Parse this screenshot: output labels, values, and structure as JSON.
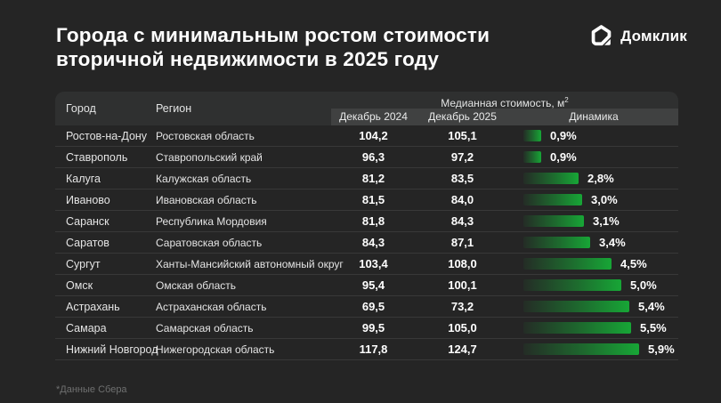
{
  "meta": {
    "background_color": "#252525",
    "header_band_color": "#2f3030",
    "subheader_band_color": "#404141",
    "accent_green": "#17a636",
    "text_color": "#ffffff"
  },
  "header": {
    "title_line1": "Города с минимальным ростом стоимости",
    "title_line2": "вторичной недвижимости в 2025 году",
    "logo_text": "Домклик",
    "logo_icon": "domclick-house-icon"
  },
  "table": {
    "col_city": "Город",
    "col_region": "Регион",
    "group_header_text": "Медианная стоимость, м",
    "group_header_sup": "2",
    "col_dec2024": "Декабрь 2024",
    "col_dec2025": "Декабрь 2025",
    "col_dynamics": "Динамика",
    "rows": [
      {
        "city": "Ростов-на-Дону",
        "region": "Ростовская область",
        "dec2024": "104,2",
        "dec2025": "105,1",
        "dynamics": "0,9%",
        "pct": 0.9
      },
      {
        "city": "Ставрополь",
        "region": "Ставропольский край",
        "dec2024": "96,3",
        "dec2025": "97,2",
        "dynamics": "0,9%",
        "pct": 0.9
      },
      {
        "city": "Калуга",
        "region": "Калужская область",
        "dec2024": "81,2",
        "dec2025": "83,5",
        "dynamics": "2,8%",
        "pct": 2.8
      },
      {
        "city": "Иваново",
        "region": "Ивановская область",
        "dec2024": "81,5",
        "dec2025": "84,0",
        "dynamics": "3,0%",
        "pct": 3.0
      },
      {
        "city": "Саранск",
        "region": "Республика Мордовия",
        "dec2024": "81,8",
        "dec2025": "84,3",
        "dynamics": "3,1%",
        "pct": 3.1
      },
      {
        "city": "Саратов",
        "region": "Саратовская область",
        "dec2024": "84,3",
        "dec2025": "87,1",
        "dynamics": "3,4%",
        "pct": 3.4
      },
      {
        "city": "Сургут",
        "region": "Ханты-Мансийский автономный округ",
        "dec2024": "103,4",
        "dec2025": "108,0",
        "dynamics": "4,5%",
        "pct": 4.5
      },
      {
        "city": "Омск",
        "region": "Омская область",
        "dec2024": "95,4",
        "dec2025": "100,1",
        "dynamics": "5,0%",
        "pct": 5.0
      },
      {
        "city": "Астрахань",
        "region": "Астраханская область",
        "dec2024": "69,5",
        "dec2025": "73,2",
        "dynamics": "5,4%",
        "pct": 5.4
      },
      {
        "city": "Самара",
        "region": "Самарская область",
        "dec2024": "99,5",
        "dec2025": "105,0",
        "dynamics": "5,5%",
        "pct": 5.5
      },
      {
        "city": "Нижний Новгород",
        "region": "Нижегородская область",
        "dec2024": "117,8",
        "dec2025": "124,7",
        "dynamics": "5,9%",
        "pct": 5.9
      }
    ]
  },
  "footer": {
    "source": "*Данные Сбера"
  },
  "chart_data": {
    "type": "table",
    "title": "Города с минимальным ростом стоимости вторичной недвижимости в 2025 году",
    "group_header": "Медианная стоимость, м²",
    "columns": [
      "Город",
      "Регион",
      "Декабрь 2024",
      "Декабрь 2025",
      "Динамика"
    ],
    "categories": [
      "Ростов-на-Дону",
      "Ставрополь",
      "Калуга",
      "Иваново",
      "Саранск",
      "Саратов",
      "Сургут",
      "Омск",
      "Астрахань",
      "Самара",
      "Нижний Новгород"
    ],
    "regions": [
      "Ростовская область",
      "Ставропольский край",
      "Калужская область",
      "Ивановская область",
      "Республика Мордовия",
      "Саратовская область",
      "Ханты-Мансийский автономный округ",
      "Омская область",
      "Астраханская область",
      "Самарская область",
      "Нижегородская область"
    ],
    "series": [
      {
        "name": "Декабрь 2024",
        "values": [
          104.2,
          96.3,
          81.2,
          81.5,
          81.8,
          84.3,
          103.4,
          95.4,
          69.5,
          99.5,
          117.8
        ]
      },
      {
        "name": "Декабрь 2025",
        "values": [
          105.1,
          97.2,
          83.5,
          84.0,
          84.3,
          87.1,
          108.0,
          100.1,
          73.2,
          105.0,
          124.7
        ]
      },
      {
        "name": "Динамика, %",
        "values": [
          0.9,
          0.9,
          2.8,
          3.0,
          3.1,
          3.4,
          4.5,
          5.0,
          5.4,
          5.5,
          5.9
        ]
      }
    ],
    "bar_style": "horizontal gradient bars, dark-to-green left-to-right",
    "bar_color": "#17a636",
    "source": "*Данные Сбера"
  }
}
